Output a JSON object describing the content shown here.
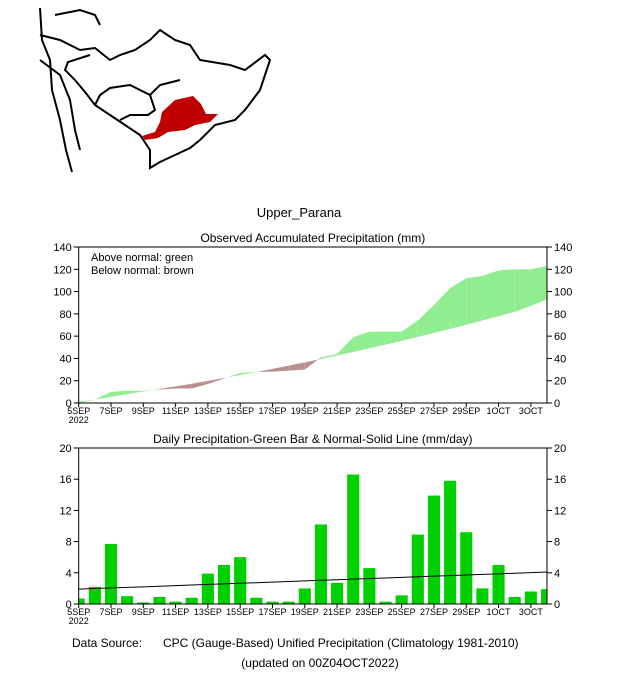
{
  "region_title": "Upper_Parana",
  "footer": {
    "source_label": "Data Source:",
    "source_text": "CPC (Gauge-Based) Unified Precipitation (Climatology 1981-2010)",
    "updated": "(updated on 00Z04OCT2022)"
  },
  "colors": {
    "above": "#90ee90",
    "below": "#bc8f8f",
    "bar": "#00d000",
    "region": "#c00000",
    "source_label": "#ff3333"
  },
  "chart_data": [
    {
      "type": "area",
      "title": "Observed Accumulated Precipitation (mm)",
      "legend": [
        "Above normal: green",
        "Below normal: brown"
      ],
      "legend_placement": "top-left",
      "ylim": [
        0,
        140
      ],
      "yticks": [
        0,
        20,
        40,
        60,
        80,
        100,
        120,
        140
      ],
      "xticklabels": [
        "5SEP",
        "7SEP",
        "9SEP",
        "11SEP",
        "13SEP",
        "15SEP",
        "17SEP",
        "19SEP",
        "21SEP",
        "23SEP",
        "25SEP",
        "27SEP",
        "29SEP",
        "1OCT",
        "3OCT"
      ],
      "xyear": "2022",
      "days": [
        "5SEP",
        "6SEP",
        "7SEP",
        "8SEP",
        "9SEP",
        "10SEP",
        "11SEP",
        "12SEP",
        "13SEP",
        "14SEP",
        "15SEP",
        "16SEP",
        "17SEP",
        "18SEP",
        "19SEP",
        "20SEP",
        "21SEP",
        "22SEP",
        "23SEP",
        "24SEP",
        "25SEP",
        "26SEP",
        "27SEP",
        "28SEP",
        "29SEP",
        "30SEP",
        "1OCT",
        "2OCT",
        "3OCT",
        "4OCT"
      ],
      "series": [
        {
          "name": "Observed",
          "values": [
            1,
            3,
            10,
            11,
            11,
            12,
            13,
            13,
            17,
            22,
            27,
            28,
            28,
            29,
            30,
            41,
            44,
            59,
            64,
            64,
            64,
            74,
            88,
            103,
            112,
            114,
            119,
            120,
            120,
            123
          ]
        },
        {
          "name": "Normal",
          "values": [
            0,
            3,
            5.5,
            8,
            10.3,
            12.6,
            14.9,
            17.3,
            19.9,
            22.4,
            25.1,
            27.8,
            30.6,
            33.5,
            36.5,
            39.5,
            42.6,
            45.8,
            49.1,
            52.4,
            55.8,
            59.3,
            62.9,
            66.5,
            70.2,
            74,
            77.9,
            81.8,
            87,
            93
          ]
        }
      ]
    },
    {
      "type": "bar",
      "title": "Daily Precipitation-Green Bar & Normal-Solid Line (mm/day)",
      "ylim": [
        0,
        20
      ],
      "yticks": [
        0,
        4,
        8,
        12,
        16,
        20
      ],
      "xticklabels": [
        "5SEP",
        "7SEP",
        "9SEP",
        "11SEP",
        "13SEP",
        "15SEP",
        "17SEP",
        "19SEP",
        "21SEP",
        "23SEP",
        "25SEP",
        "27SEP",
        "29SEP",
        "1OCT",
        "3OCT"
      ],
      "xyear": "2022",
      "series": [
        {
          "name": "Daily precipitation",
          "values": [
            0.7,
            2.2,
            7.7,
            1.0,
            0.2,
            0.9,
            0.3,
            0.8,
            3.9,
            5.0,
            6.0,
            0.8,
            0.3,
            0.3,
            2.0,
            10.2,
            2.7,
            16.6,
            4.6,
            0.3,
            1.1,
            8.9,
            13.9,
            15.8,
            9.2,
            2.0,
            5.0,
            0.9,
            1.6,
            1.9
          ]
        },
        {
          "name": "Normal",
          "values": [
            1.9,
            1.98,
            2.05,
            2.13,
            2.2,
            2.28,
            2.36,
            2.43,
            2.51,
            2.58,
            2.66,
            2.73,
            2.81,
            2.89,
            2.96,
            3.04,
            3.11,
            3.19,
            3.27,
            3.34,
            3.42,
            3.49,
            3.57,
            3.64,
            3.72,
            3.8,
            3.87,
            3.95,
            4.02,
            4.1
          ]
        }
      ]
    }
  ]
}
